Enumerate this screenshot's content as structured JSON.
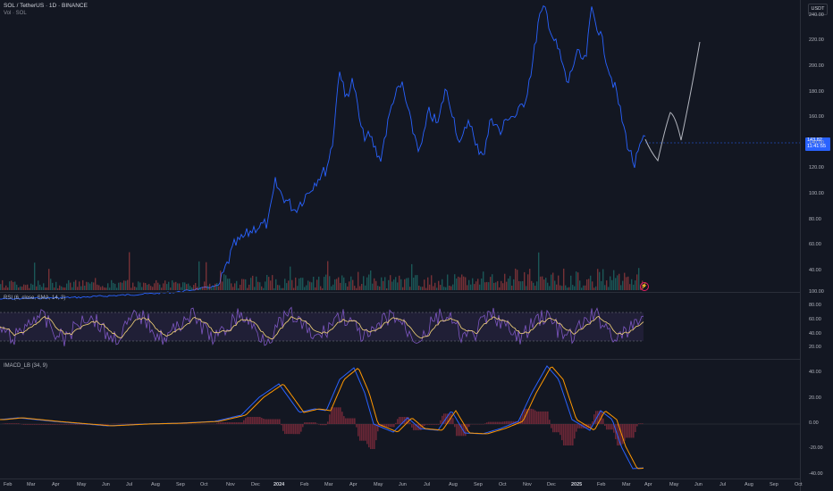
{
  "header": {
    "symbol_title": "SOL / TetherUS · 1D · BINANCE",
    "volume_label": "Vol · SOL",
    "currency_badge": "USDT"
  },
  "price_tag": {
    "price": "143.82",
    "countdown": "11:41:55"
  },
  "price_axis": {
    "labels": [
      "240.00",
      "220.00",
      "200.00",
      "180.00",
      "160.00",
      "140.00",
      "120.00",
      "100.00",
      "80.00",
      "60.00",
      "40.00"
    ]
  },
  "rsi_pane": {
    "title": "RSI (6, close, SMA, 14, 2)",
    "axis_labels": [
      "100.00",
      "80.00",
      "60.00",
      "40.00",
      "20.00"
    ]
  },
  "macd_pane": {
    "title": "IMACD_LB (34, 9)",
    "axis_labels": [
      "40.00",
      "20.00",
      "0.00",
      "-20.00",
      "-40.00"
    ]
  },
  "time_axis": {
    "labels": [
      "Feb",
      "Mar",
      "Apr",
      "May",
      "Jun",
      "Jul",
      "Aug",
      "Sep",
      "Oct",
      "Nov",
      "Dec",
      "2024",
      "Feb",
      "Mar",
      "Apr",
      "May",
      "Jun",
      "Jul",
      "Aug",
      "Sep",
      "Oct",
      "Nov",
      "Dec",
      "2025",
      "Feb",
      "Mar",
      "Apr",
      "May",
      "Jun",
      "Jul",
      "Aug",
      "Sep",
      "Oct"
    ]
  },
  "colors": {
    "background": "#131722",
    "price_line": "#2962ff",
    "projection_line": "#b2b5be",
    "rsi_line": "#7e57c2",
    "rsi_ma": "#f7d67a",
    "macd_line": "#2962ff",
    "signal_line": "#ff9800",
    "hist_neg": "#7a2a3a",
    "vol_up": "#26a69a",
    "vol_down": "#ef5350"
  }
}
